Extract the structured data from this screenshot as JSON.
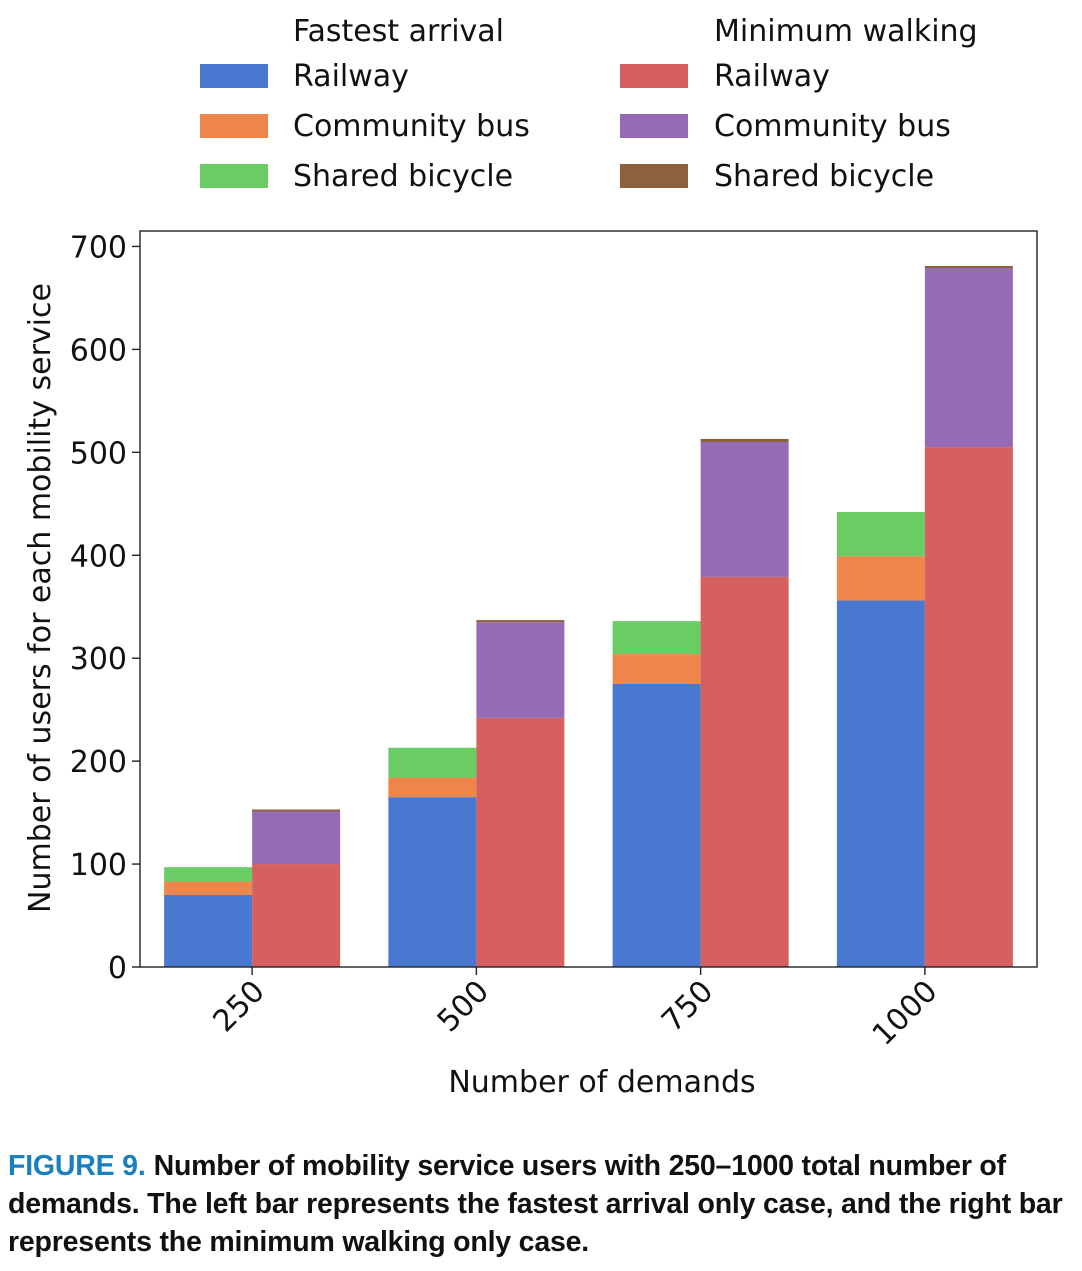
{
  "chart_data": {
    "type": "bar",
    "stacked": true,
    "grouped": true,
    "xlabel": "Number of demands",
    "ylabel": "Number of users for each mobility service",
    "ylim": [
      0,
      715
    ],
    "yticks": [
      0,
      100,
      200,
      300,
      400,
      500,
      600,
      700
    ],
    "categories": [
      "250",
      "500",
      "750",
      "1000"
    ],
    "legend_position": "top",
    "groups": [
      {
        "name": "Fastest arrival",
        "position": "left",
        "series": [
          {
            "name": "Railway",
            "color": "#4878cf",
            "values": [
              70,
              165,
              275,
              356
            ]
          },
          {
            "name": "Community bus",
            "color": "#ee854a",
            "values": [
              13,
              19,
              29,
              43
            ]
          },
          {
            "name": "Shared bicycle",
            "color": "#6acc64",
            "values": [
              14,
              29,
              32,
              43
            ]
          }
        ]
      },
      {
        "name": "Minimum walking",
        "position": "right",
        "series": [
          {
            "name": "Railway",
            "color": "#d65f5f",
            "values": [
              100,
              242,
              379,
              505
            ]
          },
          {
            "name": "Community bus",
            "color": "#956cb4",
            "values": [
              51,
              93,
              131,
              174
            ]
          },
          {
            "name": "Shared bicycle",
            "color": "#8c613c",
            "values": [
              2,
              2,
              3,
              2
            ]
          }
        ]
      }
    ]
  },
  "caption": {
    "label": "FIGURE 9.",
    "text": "Number of mobility service users with 250–1000 total number of demands. The left bar represents the fastest arrival only case, and the right bar represents the minimum walking only case."
  }
}
